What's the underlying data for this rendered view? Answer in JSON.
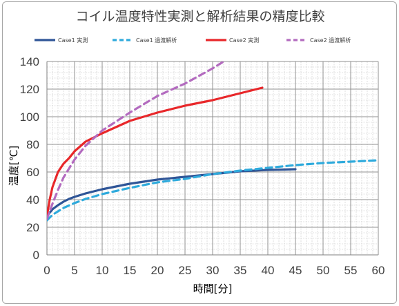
{
  "chart_data": {
    "type": "line",
    "title": "コイル温度特性実測と解析結果の精度比較",
    "xlabel": "時間[分]",
    "ylabel": "温度[℃]",
    "xlim": [
      0,
      60
    ],
    "ylim": [
      0,
      140
    ],
    "x_ticks": [
      "0",
      "5",
      "10",
      "15",
      "20",
      "25",
      "30",
      "35",
      "40",
      "45",
      "50",
      "55",
      "60"
    ],
    "y_ticks": [
      "0",
      "20",
      "40",
      "60",
      "80",
      "100",
      "120",
      "140"
    ],
    "grid": {
      "major_x": 5,
      "major_y": 20,
      "minor_x": 1,
      "minor_y": 4
    },
    "legend_position": "top",
    "series": [
      {
        "name": "Case1 実測",
        "color": "#2f5597",
        "dash": "solid",
        "points": [
          [
            0,
            28
          ],
          [
            1,
            33
          ],
          [
            2,
            36
          ],
          [
            3,
            38.5
          ],
          [
            4,
            40.5
          ],
          [
            5,
            42
          ],
          [
            7,
            44.5
          ],
          [
            10,
            47.5
          ],
          [
            15,
            51.5
          ],
          [
            20,
            54.5
          ],
          [
            25,
            56.5
          ],
          [
            30,
            58.5
          ],
          [
            35,
            60.5
          ],
          [
            40,
            61.5
          ],
          [
            45,
            62
          ]
        ]
      },
      {
        "name": "Case1 過渡解析",
        "color": "#2eaadc",
        "dash": "dashed",
        "points": [
          [
            0,
            25
          ],
          [
            1,
            29
          ],
          [
            2,
            31.5
          ],
          [
            3,
            34
          ],
          [
            5,
            37.5
          ],
          [
            7,
            40.5
          ],
          [
            10,
            44
          ],
          [
            15,
            48.5
          ],
          [
            20,
            52.5
          ],
          [
            25,
            55
          ],
          [
            30,
            58.5
          ],
          [
            35,
            61
          ],
          [
            40,
            63
          ],
          [
            45,
            65
          ],
          [
            50,
            66.5
          ],
          [
            55,
            67.5
          ],
          [
            60,
            68.5
          ]
        ]
      },
      {
        "name": "Case2 実測",
        "color": "#e8272a",
        "dash": "solid",
        "points": [
          [
            0,
            28
          ],
          [
            0.5,
            40
          ],
          [
            1,
            49
          ],
          [
            2,
            60
          ],
          [
            3,
            66
          ],
          [
            4,
            70
          ],
          [
            5,
            75
          ],
          [
            7,
            82
          ],
          [
            10,
            88
          ],
          [
            15,
            97
          ],
          [
            20,
            103
          ],
          [
            25,
            108
          ],
          [
            30,
            112
          ],
          [
            35,
            117
          ],
          [
            39,
            121
          ]
        ]
      },
      {
        "name": "Case2 過渡解析",
        "color": "#b36bbf",
        "dash": "dashed",
        "points": [
          [
            0,
            26
          ],
          [
            1,
            37
          ],
          [
            2,
            47
          ],
          [
            3,
            56
          ],
          [
            5,
            69
          ],
          [
            7,
            79
          ],
          [
            10,
            90
          ],
          [
            15,
            103
          ],
          [
            20,
            115
          ],
          [
            25,
            124
          ],
          [
            30,
            135
          ],
          [
            32,
            140
          ]
        ]
      }
    ]
  }
}
